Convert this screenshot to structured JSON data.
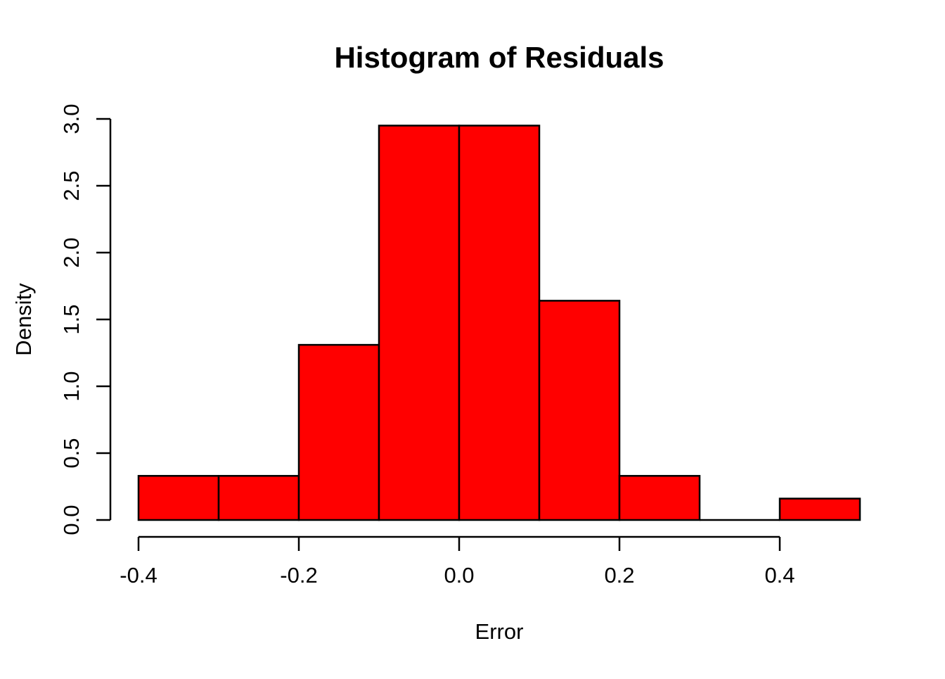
{
  "chart_data": {
    "type": "bar",
    "subtype": "histogram",
    "title": "Histogram of Residuals",
    "xlabel": "Error",
    "ylabel": "Density",
    "breaks": [
      -0.4,
      -0.3,
      -0.2,
      -0.1,
      0.0,
      0.1,
      0.2,
      0.3,
      0.4,
      0.5
    ],
    "densities": [
      0.33,
      0.33,
      1.31,
      2.95,
      2.95,
      1.64,
      0.33,
      0.0,
      0.16
    ],
    "xlim": [
      -0.4,
      0.5
    ],
    "ylim": [
      0.0,
      3.0
    ],
    "x_tick_values": [
      -0.4,
      -0.2,
      0.0,
      0.2,
      0.4
    ],
    "x_tick_labels": [
      "-0.4",
      "-0.2",
      "0.0",
      "0.2",
      "0.4"
    ],
    "y_tick_values": [
      0.0,
      0.5,
      1.0,
      1.5,
      2.0,
      2.5,
      3.0
    ],
    "y_tick_labels": [
      "0.0",
      "0.5",
      "1.0",
      "1.5",
      "2.0",
      "2.5",
      "3.0"
    ],
    "bar_fill": "#FF0000",
    "bar_stroke": "#000000",
    "axis_color": "#000000",
    "text_color": "#000000",
    "background": "#FFFFFF",
    "grid": false,
    "legend": false
  }
}
